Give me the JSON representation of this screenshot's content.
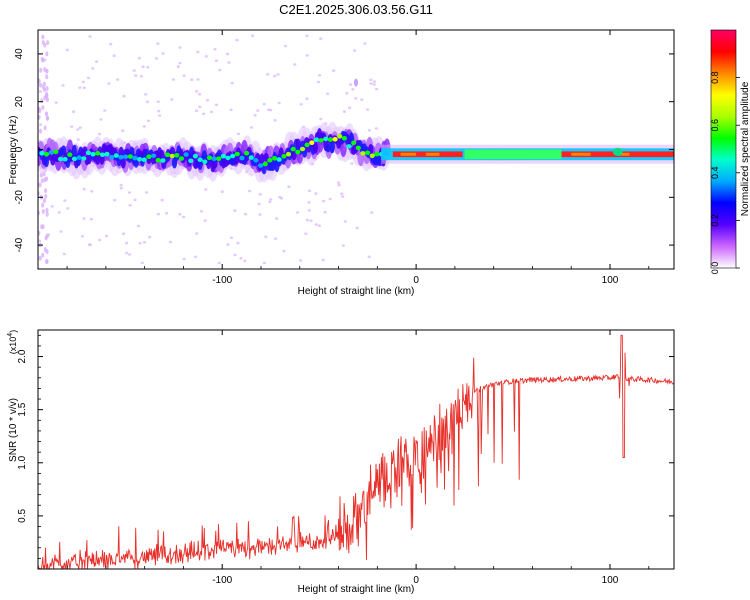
{
  "title": "C2E1.2025.306.03.56.G11",
  "chart_data": [
    {
      "type": "heatmap",
      "name": "spectrogram",
      "xlabel": "Height of straight line (km)",
      "ylabel": "Frequency (Hz)",
      "xlim": [
        -195,
        133
      ],
      "ylim": [
        -50,
        50
      ],
      "xticks": [
        -100,
        0,
        100
      ],
      "yticks": [
        -40,
        -20,
        0,
        20,
        40
      ],
      "ridge": {
        "x": [
          -195,
          -175,
          -160,
          -150,
          -135,
          -120,
          -105,
          -95,
          -88,
          -80,
          -70,
          -62,
          -55,
          -50,
          -45,
          -40,
          -33,
          -28,
          -22,
          -15,
          -10,
          0,
          20,
          40,
          60,
          80,
          100,
          133
        ],
        "y": [
          -2,
          -3,
          -2,
          -3,
          -4,
          -3,
          -5,
          -3,
          -2,
          -6,
          -4,
          0,
          1,
          4,
          3,
          5,
          2,
          0,
          -2,
          -2,
          -2,
          -2,
          -2,
          -2,
          -3,
          -3,
          -3,
          -3
        ]
      },
      "colorbar": {
        "label": "Normalized spectral amplitude",
        "range": [
          0,
          1
        ],
        "ticks": [
          "0.0",
          "0.2",
          "0.4",
          "0.6",
          "0.8"
        ],
        "colors": [
          "#ffffff",
          "#cc66ff",
          "#5500ff",
          "#0000ff",
          "#00aaff",
          "#00ffcc",
          "#00ff00",
          "#aaff00",
          "#ffff00",
          "#ff8800",
          "#ff0000",
          "#ff0066"
        ]
      }
    },
    {
      "type": "line",
      "name": "snr",
      "xlabel": "Height of straight line (km)",
      "ylabel": "SNR (10 * v/v)",
      "multiplier_base": "(x10",
      "multiplier_exp": "4",
      "multiplier_close": ")",
      "xlim": [
        -195,
        133
      ],
      "ylim": [
        0,
        2.25
      ],
      "xticks": [
        -100,
        0,
        100
      ],
      "yticks": [
        0.5,
        1.0,
        1.5,
        2.0
      ],
      "ytick_labels": [
        "0.5",
        "1.0",
        "1.5",
        "2.0"
      ],
      "color": "#e8302a",
      "trend": {
        "x": [
          -195,
          -170,
          -150,
          -130,
          -110,
          -90,
          -70,
          -55,
          -45,
          -35,
          -28,
          -20,
          -10,
          0,
          10,
          20,
          25,
          30,
          40,
          50,
          60,
          80,
          100,
          105,
          110,
          120,
          133
        ],
        "y": [
          0.04,
          0.07,
          0.1,
          0.13,
          0.17,
          0.2,
          0.22,
          0.25,
          0.28,
          0.4,
          0.55,
          0.75,
          0.95,
          1.05,
          1.15,
          1.4,
          1.58,
          1.68,
          1.74,
          1.77,
          1.78,
          1.79,
          1.8,
          1.82,
          1.79,
          1.78,
          1.76
        ]
      }
    }
  ],
  "x_tick_labels": [
    "-100",
    "0",
    "100"
  ],
  "top_y_tick_labels": [
    "-40",
    "-20",
    "0",
    "20",
    "40"
  ]
}
